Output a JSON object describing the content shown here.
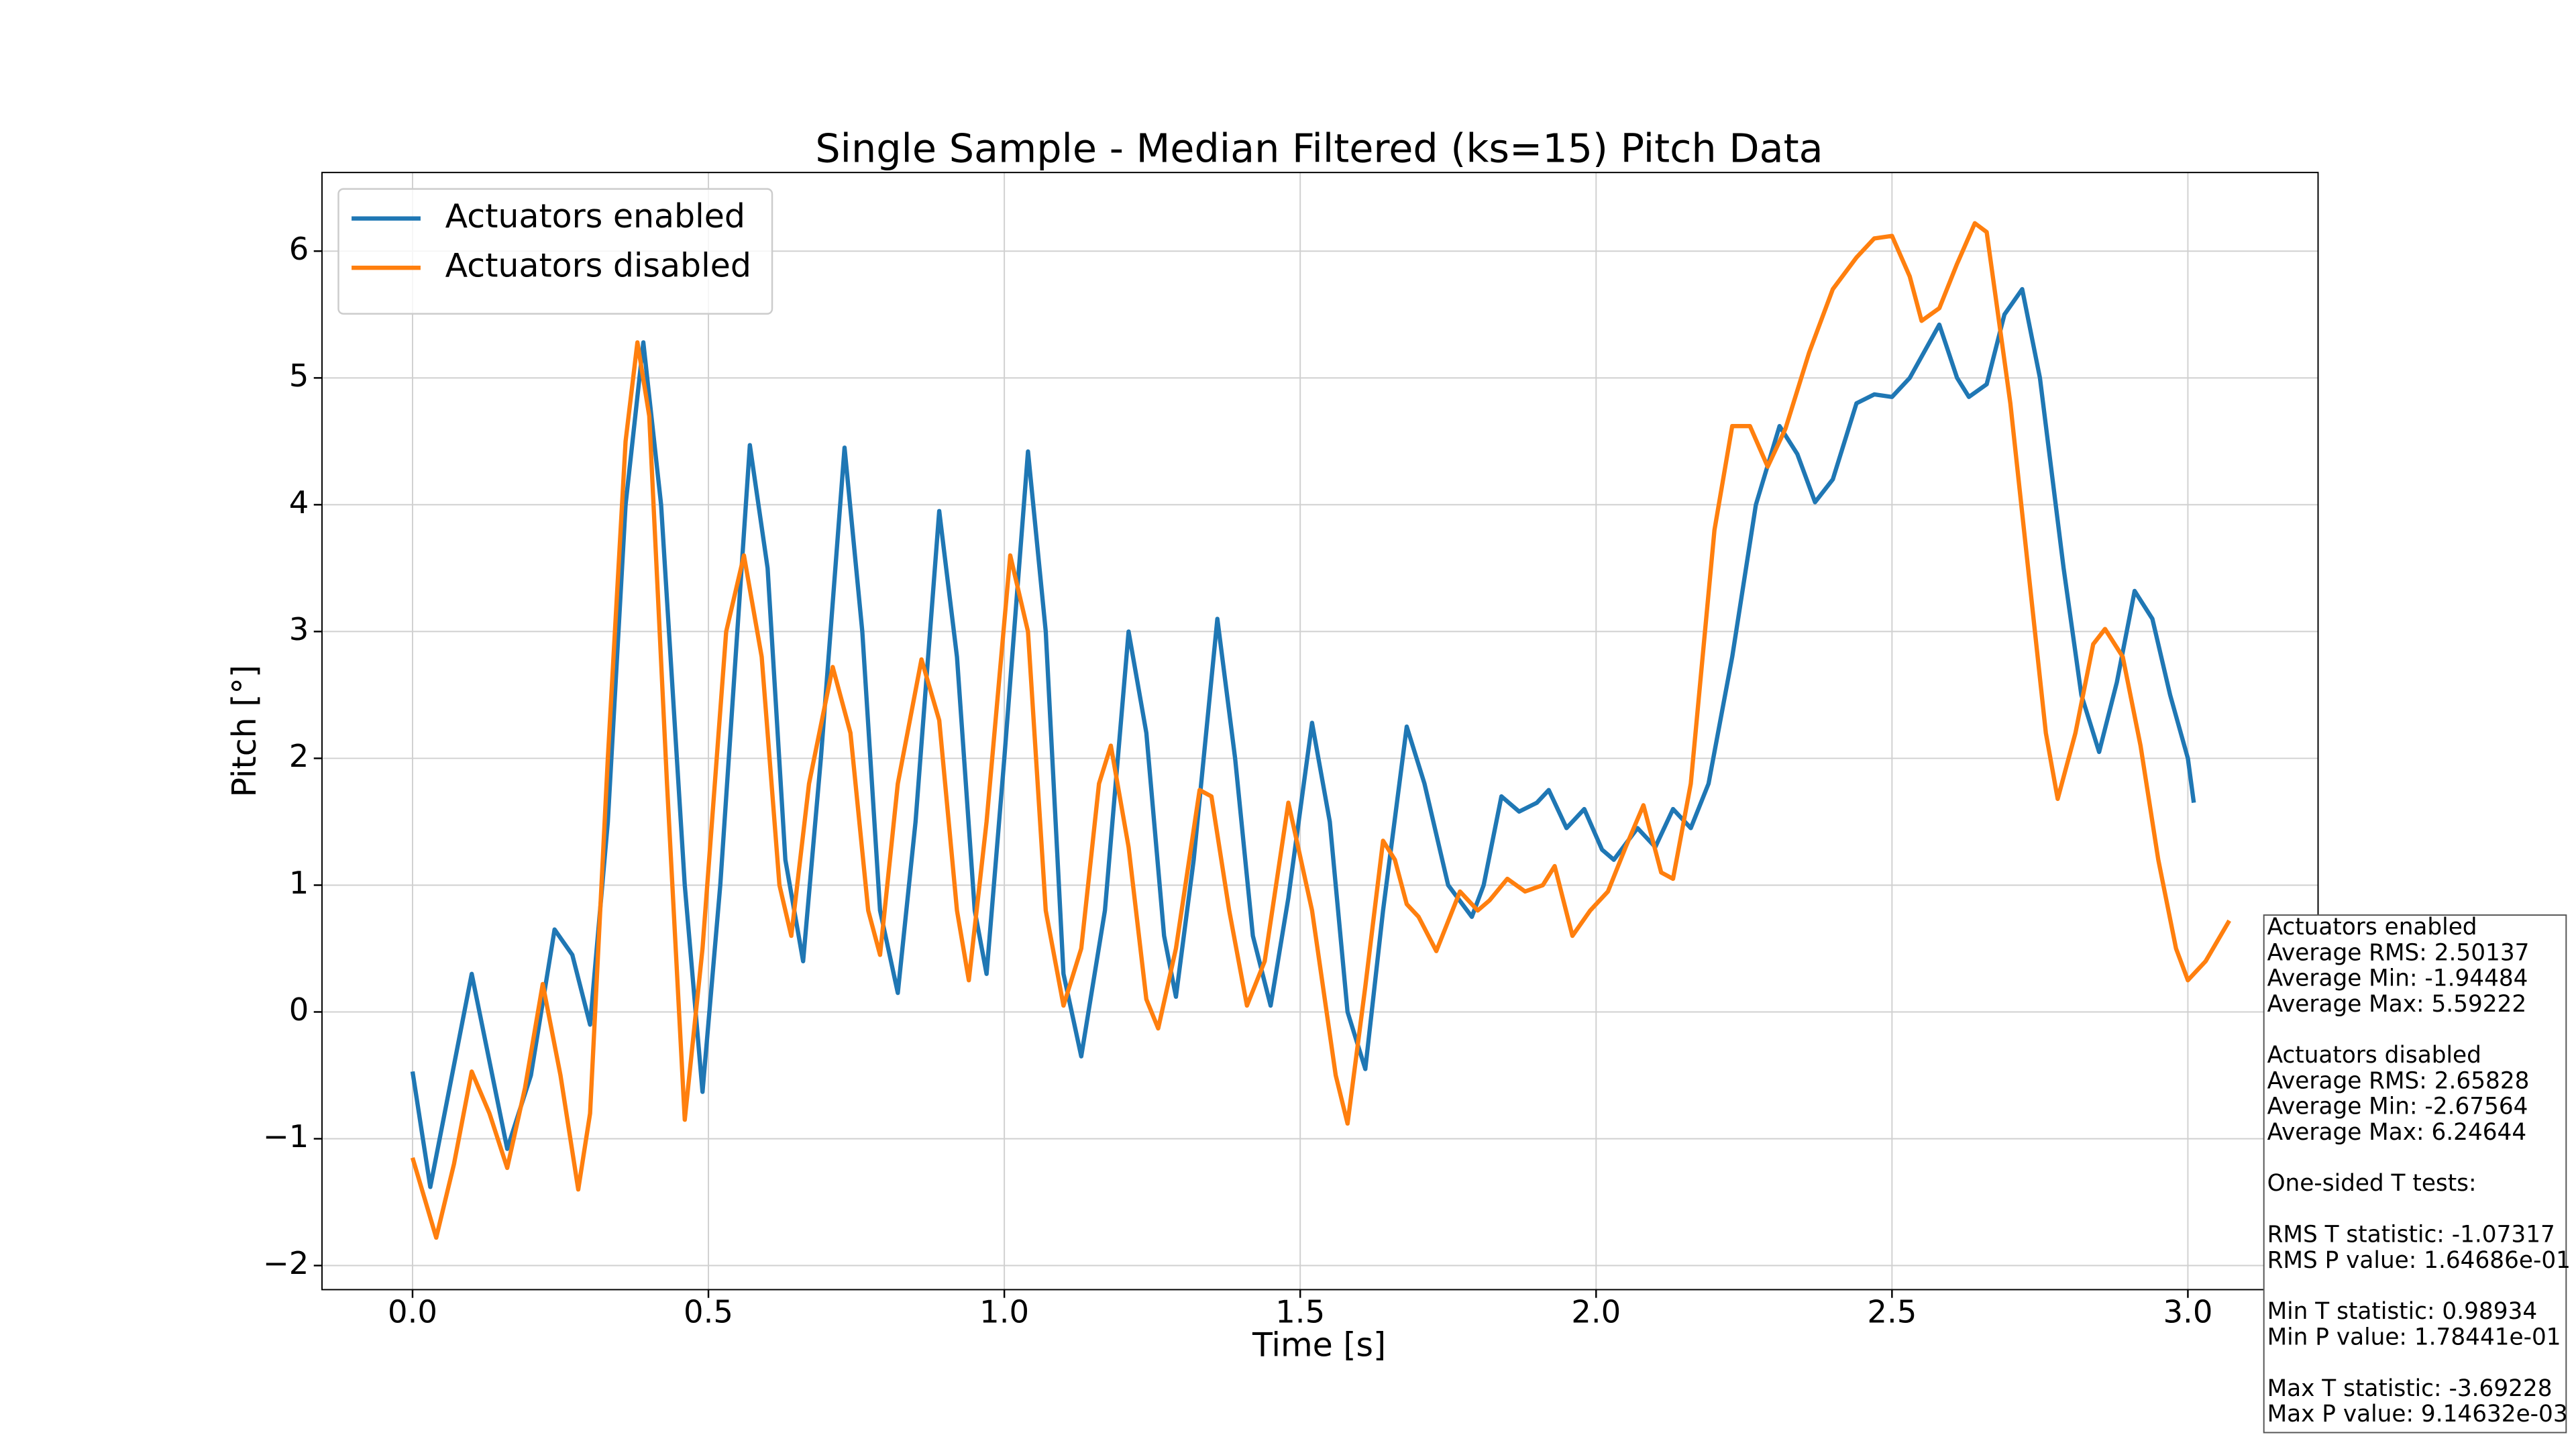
{
  "chart_data": {
    "type": "line",
    "title": "Single Sample - Median Filtered (ks=15) Pitch Data",
    "xlabel": "Time [s]",
    "ylabel": "Pitch [°]",
    "xlim": [
      -0.153,
      3.22
    ],
    "ylim": [
      -2.19,
      6.62
    ],
    "xticks": [
      {
        "value": 0,
        "label": "0.0"
      },
      {
        "value": 0.5,
        "label": "0.5"
      },
      {
        "value": 1,
        "label": "1.0"
      },
      {
        "value": 1.5,
        "label": "1.5"
      },
      {
        "value": 2,
        "label": "2.0"
      },
      {
        "value": 2.5,
        "label": "2.5"
      },
      {
        "value": 3,
        "label": "3.0"
      }
    ],
    "yticks": [
      {
        "value": -2,
        "label": "−2"
      },
      {
        "value": -1,
        "label": "−1"
      },
      0,
      1,
      2,
      3,
      4,
      5,
      6
    ],
    "grid": true,
    "legend": "upper left",
    "series": [
      {
        "name": "Actuators enabled",
        "color": "#1f77b4",
        "x": [
          0,
          0.03,
          0.1,
          0.16,
          0.2,
          0.24,
          0.27,
          0.3,
          0.33,
          0.36,
          0.39,
          0.42,
          0.46,
          0.49,
          0.52,
          0.57,
          0.6,
          0.63,
          0.66,
          0.69,
          0.73,
          0.76,
          0.79,
          0.82,
          0.85,
          0.89,
          0.92,
          0.95,
          0.97,
          1,
          1.04,
          1.07,
          1.1,
          1.13,
          1.17,
          1.21,
          1.24,
          1.27,
          1.29,
          1.32,
          1.36,
          1.39,
          1.42,
          1.45,
          1.48,
          1.52,
          1.55,
          1.58,
          1.61,
          1.64,
          1.68,
          1.71,
          1.75,
          1.79,
          1.81,
          1.84,
          1.87,
          1.9,
          1.92,
          1.95,
          1.98,
          2.01,
          2.03,
          2.07,
          2.1,
          2.13,
          2.16,
          2.19,
          2.23,
          2.27,
          2.31,
          2.34,
          2.37,
          2.4,
          2.44,
          2.47,
          2.5,
          2.53,
          2.58,
          2.61,
          2.63,
          2.66,
          2.69,
          2.72,
          2.75,
          2.79,
          2.82,
          2.85,
          2.88,
          2.91,
          2.94,
          2.97,
          3,
          3.01
        ],
        "values": [
          -0.47,
          -1.38,
          0.3,
          -1.08,
          -0.5,
          0.65,
          0.45,
          -0.1,
          1.5,
          4,
          5.28,
          4,
          1,
          -0.63,
          1,
          4.47,
          3.5,
          1.2,
          0.4,
          2,
          4.45,
          3,
          0.8,
          0.15,
          1.5,
          3.95,
          2.8,
          0.8,
          0.3,
          2,
          4.42,
          3,
          0.3,
          -0.35,
          0.8,
          3,
          2.2,
          0.6,
          0.12,
          1.2,
          3.1,
          2,
          0.6,
          0.05,
          0.9,
          2.28,
          1.5,
          0,
          -0.45,
          0.8,
          2.25,
          1.8,
          1,
          0.75,
          1,
          1.7,
          1.58,
          1.65,
          1.75,
          1.45,
          1.6,
          1.28,
          1.2,
          1.45,
          1.3,
          1.6,
          1.45,
          1.8,
          2.8,
          4,
          4.62,
          4.4,
          4.02,
          4.2,
          4.8,
          4.87,
          4.85,
          5,
          5.42,
          5,
          4.85,
          4.95,
          5.5,
          5.7,
          5,
          3.5,
          2.5,
          2.05,
          2.6,
          3.32,
          3.1,
          2.5,
          2,
          1.65
        ]
      },
      {
        "name": "Actuators disabled",
        "color": "#ff7f0e",
        "x": [
          0,
          0.04,
          0.07,
          0.1,
          0.13,
          0.16,
          0.19,
          0.22,
          0.25,
          0.28,
          0.3,
          0.33,
          0.36,
          0.38,
          0.4,
          0.43,
          0.46,
          0.49,
          0.53,
          0.56,
          0.59,
          0.62,
          0.64,
          0.67,
          0.71,
          0.74,
          0.77,
          0.79,
          0.82,
          0.86,
          0.89,
          0.92,
          0.94,
          0.97,
          1.01,
          1.04,
          1.07,
          1.1,
          1.13,
          1.16,
          1.18,
          1.21,
          1.24,
          1.26,
          1.29,
          1.33,
          1.35,
          1.38,
          1.41,
          1.44,
          1.48,
          1.52,
          1.56,
          1.58,
          1.61,
          1.64,
          1.66,
          1.68,
          1.7,
          1.73,
          1.77,
          1.8,
          1.82,
          1.85,
          1.88,
          1.91,
          1.93,
          1.96,
          1.99,
          2.02,
          2.05,
          2.08,
          2.11,
          2.13,
          2.16,
          2.2,
          2.23,
          2.26,
          2.29,
          2.32,
          2.36,
          2.4,
          2.44,
          2.47,
          2.5,
          2.53,
          2.55,
          2.58,
          2.61,
          2.64,
          2.66,
          2.7,
          2.73,
          2.76,
          2.78,
          2.81,
          2.84,
          2.86,
          2.89,
          2.92,
          2.95,
          2.98,
          3,
          3.03,
          3.07
        ],
        "values": [
          -1.15,
          -1.78,
          -1.2,
          -0.47,
          -0.8,
          -1.23,
          -0.6,
          0.22,
          -0.5,
          -1.4,
          -0.8,
          2,
          4.5,
          5.28,
          4.7,
          1.8,
          -0.85,
          0.5,
          3,
          3.6,
          2.8,
          1,
          0.6,
          1.8,
          2.72,
          2.2,
          0.8,
          0.45,
          1.8,
          2.78,
          2.3,
          0.8,
          0.25,
          1.5,
          3.6,
          3,
          0.8,
          0.05,
          0.5,
          1.8,
          2.1,
          1.3,
          0.1,
          -0.13,
          0.5,
          1.75,
          1.7,
          0.8,
          0.05,
          0.4,
          1.65,
          0.8,
          -0.5,
          -0.88,
          0.2,
          1.35,
          1.2,
          0.85,
          0.75,
          0.48,
          0.95,
          0.8,
          0.88,
          1.05,
          0.95,
          1,
          1.15,
          0.6,
          0.8,
          0.95,
          1.3,
          1.63,
          1.1,
          1.05,
          1.8,
          3.8,
          4.62,
          4.62,
          4.3,
          4.6,
          5.2,
          5.7,
          5.95,
          6.1,
          6.12,
          5.8,
          5.45,
          5.55,
          5.9,
          6.22,
          6.15,
          4.8,
          3.5,
          2.2,
          1.68,
          2.2,
          2.9,
          3.02,
          2.8,
          2.1,
          1.2,
          0.5,
          0.25,
          0.4,
          0.72
        ]
      }
    ],
    "stats_box": [
      [
        "Actuators enabled",
        "Average RMS: 2.50137",
        "Average Min: -1.94484",
        "Average Max: 5.59222"
      ],
      [
        "Actuators disabled",
        "Average RMS: 2.65828",
        "Average Min: -2.67564",
        "Average Max: 6.24644"
      ],
      [
        "One-sided T tests:"
      ],
      [
        "RMS T statistic: -1.07317",
        "RMS P value: 1.64686e-01"
      ],
      [
        "Min T statistic: 0.98934",
        "Min P value: 1.78441e-01"
      ],
      [
        "Max T statistic: -3.69228",
        "Max P value: 9.14632e-03"
      ]
    ]
  }
}
